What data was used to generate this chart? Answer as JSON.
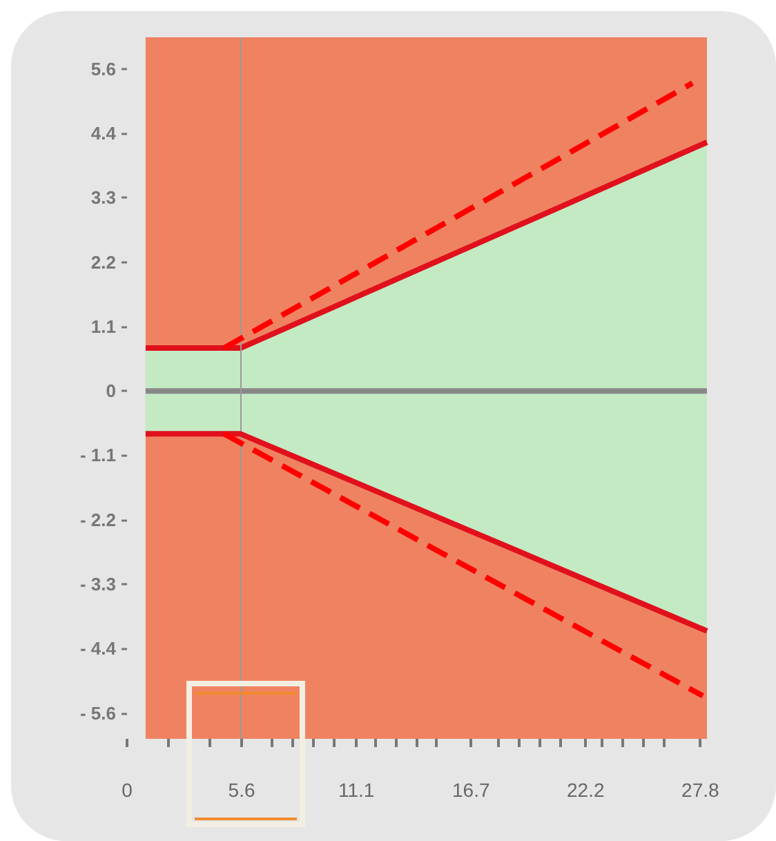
{
  "chart_data": {
    "type": "line",
    "xlim": [
      0,
      28.1
    ],
    "xticks": [
      {
        "value": 0,
        "label": "0"
      },
      {
        "value": 2,
        "label": null
      },
      {
        "value": 3,
        "label": null
      },
      {
        "value": 4,
        "label": null
      },
      {
        "value": 5.556,
        "label": "5.6"
      },
      {
        "value": 7,
        "label": null
      },
      {
        "value": 8,
        "label": null
      },
      {
        "value": 9,
        "label": null
      },
      {
        "value": 10,
        "label": null
      },
      {
        "value": 11.111,
        "label": "11.1"
      },
      {
        "value": 12,
        "label": null
      },
      {
        "value": 13,
        "label": null
      },
      {
        "value": 14,
        "label": null
      },
      {
        "value": 15,
        "label": null
      },
      {
        "value": 16.667,
        "label": "16.7"
      },
      {
        "value": 18,
        "label": null
      },
      {
        "value": 19,
        "label": null
      },
      {
        "value": 20,
        "label": null
      },
      {
        "value": 21,
        "label": null
      },
      {
        "value": 22.222,
        "label": "22.2"
      },
      {
        "value": 23,
        "label": null
      },
      {
        "value": 24,
        "label": null
      },
      {
        "value": 25,
        "label": null
      },
      {
        "value": 26,
        "label": null
      },
      {
        "value": 27.778,
        "label": "27.8"
      }
    ],
    "ylim": [
      -6.0,
      6.1
    ],
    "yticks": [
      {
        "value": 5.556,
        "label": "5.6"
      },
      {
        "value": 4.444,
        "label": "4.4"
      },
      {
        "value": 3.333,
        "label": "3.3"
      },
      {
        "value": 2.222,
        "label": "2.2"
      },
      {
        "value": 1.111,
        "label": "1.1"
      },
      {
        "value": 0,
        "label": "0"
      },
      {
        "value": -1.111,
        "label": "- 1.1"
      },
      {
        "value": -2.222,
        "label": "- 2.2"
      },
      {
        "value": -3.333,
        "label": "- 3.3"
      },
      {
        "value": -4.444,
        "label": "- 4.4"
      },
      {
        "value": -5.556,
        "label": "- 5.6"
      }
    ],
    "marker": "none",
    "bands": [
      {
        "axis": "x",
        "from": 0.9,
        "to": 28.1,
        "color": "#ef8361"
      }
    ],
    "ref_lines": [
      {
        "axis": "x",
        "value": 5.5,
        "color": "#9a9a9a"
      }
    ],
    "series": [
      {
        "color": "#888888",
        "x": [
          0.9,
          5.5,
          28.1
        ],
        "values": [
          0,
          0,
          0
        ],
        "lower": [
          -0.74,
          -0.74,
          -4.14
        ],
        "upper": [
          0.74,
          0.74,
          4.29
        ]
      },
      {
        "color": "#e0101c",
        "x": [
          0.9,
          5.5,
          28.1
        ],
        "values": [
          0.74,
          0.74,
          4.29
        ]
      },
      {
        "color": "#e0101c",
        "x": [
          0.9,
          5.5,
          28.1
        ],
        "values": [
          -0.74,
          -0.74,
          -4.14
        ]
      },
      {
        "color": "#ff0000",
        "line_style": "dashed",
        "x": [
          4.7,
          27.4
        ],
        "values": [
          0.74,
          5.31
        ]
      },
      {
        "color": "#ff0000",
        "line_style": "dashed",
        "x": [
          4.7,
          27.9
        ],
        "values": [
          -0.74,
          -5.26
        ]
      }
    ]
  }
}
